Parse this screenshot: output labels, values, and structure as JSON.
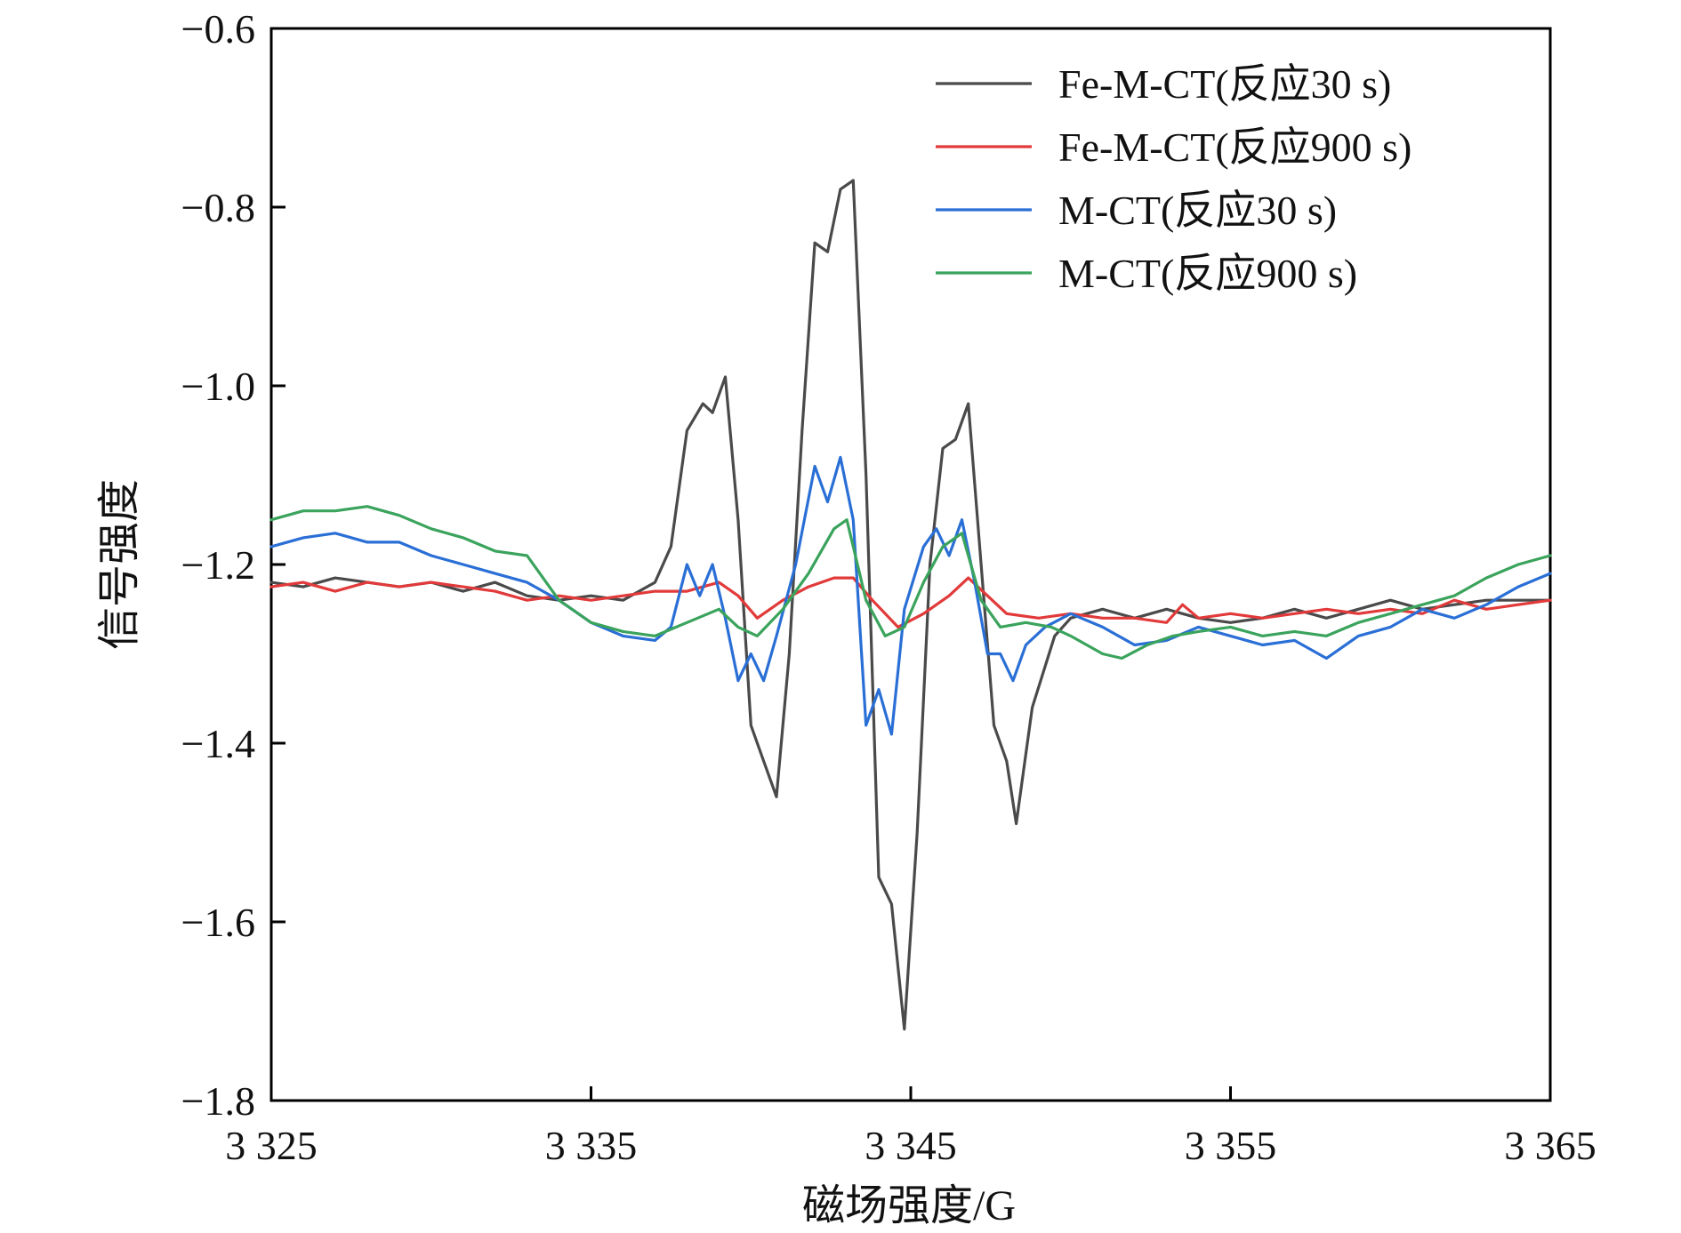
{
  "chart_data": {
    "type": "line",
    "title": "",
    "xlabel": "磁场强度/G",
    "ylabel": "信号强度",
    "xlim": [
      3325,
      3365
    ],
    "ylim": [
      -1.8,
      -0.6
    ],
    "xticks": [
      3325,
      3335,
      3345,
      3355,
      3365
    ],
    "xtick_labels": [
      "3 325",
      "3 335",
      "3 345",
      "3 355",
      "3 365"
    ],
    "yticks": [
      -0.6,
      -0.8,
      -1.0,
      -1.2,
      -1.4,
      -1.6,
      -1.8
    ],
    "ytick_labels": [
      "−0.6",
      "−0.8",
      "−1.0",
      "−1.2",
      "−1.4",
      "−1.6",
      "−1.8"
    ],
    "grid": false,
    "legend_position": "top-right",
    "series": [
      {
        "name": "Fe-M-CT(反应30 s)",
        "color": "#4a4a4a",
        "points": [
          [
            3325,
            -1.22
          ],
          [
            3326,
            -1.225
          ],
          [
            3327,
            -1.215
          ],
          [
            3328,
            -1.22
          ],
          [
            3329,
            -1.225
          ],
          [
            3330,
            -1.22
          ],
          [
            3331,
            -1.23
          ],
          [
            3332,
            -1.22
          ],
          [
            3333,
            -1.235
          ],
          [
            3334,
            -1.24
          ],
          [
            3335,
            -1.235
          ],
          [
            3336,
            -1.24
          ],
          [
            3337,
            -1.22
          ],
          [
            3337.5,
            -1.18
          ],
          [
            3338,
            -1.05
          ],
          [
            3338.5,
            -1.02
          ],
          [
            3338.8,
            -1.03
          ],
          [
            3339.2,
            -0.99
          ],
          [
            3339.6,
            -1.15
          ],
          [
            3340,
            -1.38
          ],
          [
            3340.4,
            -1.42
          ],
          [
            3340.8,
            -1.46
          ],
          [
            3341.2,
            -1.3
          ],
          [
            3341.6,
            -1.05
          ],
          [
            3342,
            -0.84
          ],
          [
            3342.4,
            -0.85
          ],
          [
            3342.8,
            -0.78
          ],
          [
            3343.2,
            -0.77
          ],
          [
            3343.6,
            -1.1
          ],
          [
            3344,
            -1.55
          ],
          [
            3344.4,
            -1.58
          ],
          [
            3344.8,
            -1.72
          ],
          [
            3345.2,
            -1.5
          ],
          [
            3345.6,
            -1.2
          ],
          [
            3346,
            -1.07
          ],
          [
            3346.4,
            -1.06
          ],
          [
            3346.8,
            -1.02
          ],
          [
            3347.2,
            -1.2
          ],
          [
            3347.6,
            -1.38
          ],
          [
            3348,
            -1.42
          ],
          [
            3348.3,
            -1.49
          ],
          [
            3348.8,
            -1.36
          ],
          [
            3349.5,
            -1.28
          ],
          [
            3350,
            -1.26
          ],
          [
            3351,
            -1.25
          ],
          [
            3352,
            -1.26
          ],
          [
            3353,
            -1.25
          ],
          [
            3354,
            -1.26
          ],
          [
            3355,
            -1.265
          ],
          [
            3356,
            -1.26
          ],
          [
            3357,
            -1.25
          ],
          [
            3358,
            -1.26
          ],
          [
            3359,
            -1.25
          ],
          [
            3360,
            -1.24
          ],
          [
            3361,
            -1.25
          ],
          [
            3362,
            -1.245
          ],
          [
            3363,
            -1.24
          ],
          [
            3364,
            -1.24
          ],
          [
            3365,
            -1.24
          ]
        ]
      },
      {
        "name": "Fe-M-CT(反应900 s)",
        "color": "#e23a3a",
        "points": [
          [
            3325,
            -1.225
          ],
          [
            3326,
            -1.22
          ],
          [
            3327,
            -1.23
          ],
          [
            3328,
            -1.22
          ],
          [
            3329,
            -1.225
          ],
          [
            3330,
            -1.22
          ],
          [
            3331,
            -1.225
          ],
          [
            3332,
            -1.23
          ],
          [
            3333,
            -1.24
          ],
          [
            3334,
            -1.235
          ],
          [
            3335,
            -1.24
          ],
          [
            3336,
            -1.235
          ],
          [
            3337,
            -1.23
          ],
          [
            3338,
            -1.23
          ],
          [
            3339,
            -1.22
          ],
          [
            3339.6,
            -1.235
          ],
          [
            3340.2,
            -1.26
          ],
          [
            3341,
            -1.24
          ],
          [
            3341.8,
            -1.225
          ],
          [
            3342.6,
            -1.215
          ],
          [
            3343.2,
            -1.215
          ],
          [
            3343.8,
            -1.24
          ],
          [
            3344.6,
            -1.27
          ],
          [
            3345.4,
            -1.255
          ],
          [
            3346.2,
            -1.235
          ],
          [
            3346.8,
            -1.215
          ],
          [
            3347.4,
            -1.235
          ],
          [
            3348,
            -1.255
          ],
          [
            3349,
            -1.26
          ],
          [
            3350,
            -1.255
          ],
          [
            3351,
            -1.26
          ],
          [
            3352,
            -1.26
          ],
          [
            3353,
            -1.265
          ],
          [
            3353.5,
            -1.245
          ],
          [
            3354,
            -1.26
          ],
          [
            3355,
            -1.255
          ],
          [
            3356,
            -1.26
          ],
          [
            3357,
            -1.255
          ],
          [
            3358,
            -1.25
          ],
          [
            3359,
            -1.255
          ],
          [
            3360,
            -1.25
          ],
          [
            3361,
            -1.255
          ],
          [
            3362,
            -1.24
          ],
          [
            3363,
            -1.25
          ],
          [
            3364,
            -1.245
          ],
          [
            3365,
            -1.24
          ]
        ]
      },
      {
        "name": "M-CT(反应30 s)",
        "color": "#2a6fd6",
        "points": [
          [
            3325,
            -1.18
          ],
          [
            3326,
            -1.17
          ],
          [
            3327,
            -1.165
          ],
          [
            3328,
            -1.175
          ],
          [
            3329,
            -1.175
          ],
          [
            3330,
            -1.19
          ],
          [
            3331,
            -1.2
          ],
          [
            3332,
            -1.21
          ],
          [
            3333,
            -1.22
          ],
          [
            3334,
            -1.24
          ],
          [
            3335,
            -1.265
          ],
          [
            3336,
            -1.28
          ],
          [
            3337,
            -1.285
          ],
          [
            3337.5,
            -1.27
          ],
          [
            3338,
            -1.2
          ],
          [
            3338.4,
            -1.235
          ],
          [
            3338.8,
            -1.2
          ],
          [
            3339.2,
            -1.26
          ],
          [
            3339.6,
            -1.33
          ],
          [
            3340,
            -1.3
          ],
          [
            3340.4,
            -1.33
          ],
          [
            3340.8,
            -1.28
          ],
          [
            3341.4,
            -1.2
          ],
          [
            3342,
            -1.09
          ],
          [
            3342.4,
            -1.13
          ],
          [
            3342.8,
            -1.08
          ],
          [
            3343.2,
            -1.15
          ],
          [
            3343.6,
            -1.38
          ],
          [
            3344,
            -1.34
          ],
          [
            3344.4,
            -1.39
          ],
          [
            3344.8,
            -1.25
          ],
          [
            3345.4,
            -1.18
          ],
          [
            3345.8,
            -1.16
          ],
          [
            3346.2,
            -1.19
          ],
          [
            3346.6,
            -1.15
          ],
          [
            3347,
            -1.22
          ],
          [
            3347.4,
            -1.3
          ],
          [
            3347.8,
            -1.3
          ],
          [
            3348.2,
            -1.33
          ],
          [
            3348.6,
            -1.29
          ],
          [
            3349.2,
            -1.27
          ],
          [
            3350,
            -1.255
          ],
          [
            3351,
            -1.27
          ],
          [
            3352,
            -1.29
          ],
          [
            3353,
            -1.285
          ],
          [
            3354,
            -1.27
          ],
          [
            3355,
            -1.28
          ],
          [
            3356,
            -1.29
          ],
          [
            3357,
            -1.285
          ],
          [
            3358,
            -1.305
          ],
          [
            3359,
            -1.28
          ],
          [
            3360,
            -1.27
          ],
          [
            3361,
            -1.25
          ],
          [
            3362,
            -1.26
          ],
          [
            3363,
            -1.245
          ],
          [
            3364,
            -1.225
          ],
          [
            3365,
            -1.21
          ]
        ]
      },
      {
        "name": "M-CT(反应900 s)",
        "color": "#3aa35c",
        "points": [
          [
            3325,
            -1.15
          ],
          [
            3326,
            -1.14
          ],
          [
            3327,
            -1.14
          ],
          [
            3328,
            -1.135
          ],
          [
            3329,
            -1.145
          ],
          [
            3330,
            -1.16
          ],
          [
            3331,
            -1.17
          ],
          [
            3332,
            -1.185
          ],
          [
            3333,
            -1.19
          ],
          [
            3334,
            -1.24
          ],
          [
            3335,
            -1.265
          ],
          [
            3336,
            -1.275
          ],
          [
            3337,
            -1.28
          ],
          [
            3338,
            -1.265
          ],
          [
            3339,
            -1.25
          ],
          [
            3339.6,
            -1.27
          ],
          [
            3340.2,
            -1.28
          ],
          [
            3341,
            -1.25
          ],
          [
            3341.8,
            -1.21
          ],
          [
            3342.6,
            -1.16
          ],
          [
            3343,
            -1.15
          ],
          [
            3343.6,
            -1.24
          ],
          [
            3344.2,
            -1.28
          ],
          [
            3344.8,
            -1.27
          ],
          [
            3345.4,
            -1.22
          ],
          [
            3346,
            -1.18
          ],
          [
            3346.6,
            -1.165
          ],
          [
            3347.2,
            -1.24
          ],
          [
            3347.8,
            -1.27
          ],
          [
            3348.6,
            -1.265
          ],
          [
            3349.4,
            -1.27
          ],
          [
            3350,
            -1.28
          ],
          [
            3351,
            -1.3
          ],
          [
            3351.6,
            -1.305
          ],
          [
            3352.4,
            -1.29
          ],
          [
            3353.2,
            -1.28
          ],
          [
            3354,
            -1.275
          ],
          [
            3355,
            -1.27
          ],
          [
            3356,
            -1.28
          ],
          [
            3357,
            -1.275
          ],
          [
            3358,
            -1.28
          ],
          [
            3359,
            -1.265
          ],
          [
            3360,
            -1.255
          ],
          [
            3361,
            -1.245
          ],
          [
            3362,
            -1.235
          ],
          [
            3363,
            -1.215
          ],
          [
            3364,
            -1.2
          ],
          [
            3365,
            -1.19
          ]
        ]
      }
    ]
  }
}
